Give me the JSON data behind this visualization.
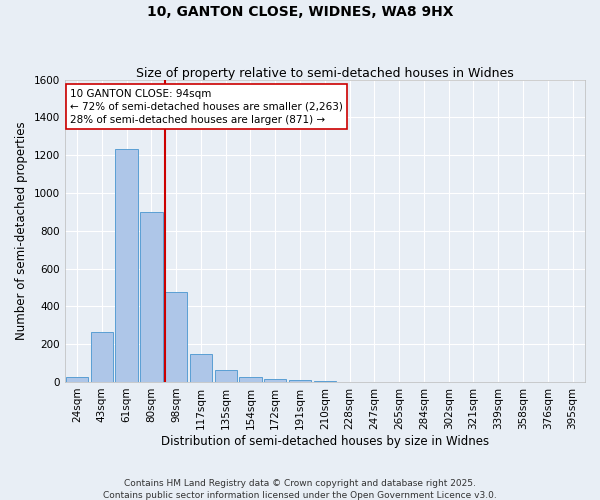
{
  "title": "10, GANTON CLOSE, WIDNES, WA8 9HX",
  "subtitle": "Size of property relative to semi-detached houses in Widnes",
  "xlabel": "Distribution of semi-detached houses by size in Widnes",
  "ylabel": "Number of semi-detached properties",
  "categories": [
    "24sqm",
    "43sqm",
    "61sqm",
    "80sqm",
    "98sqm",
    "117sqm",
    "135sqm",
    "154sqm",
    "172sqm",
    "191sqm",
    "210sqm",
    "228sqm",
    "247sqm",
    "265sqm",
    "284sqm",
    "302sqm",
    "321sqm",
    "339sqm",
    "358sqm",
    "376sqm",
    "395sqm"
  ],
  "values": [
    25,
    265,
    1230,
    900,
    475,
    150,
    65,
    28,
    18,
    8,
    3,
    0,
    0,
    0,
    0,
    0,
    0,
    0,
    0,
    0,
    0
  ],
  "bar_color": "#aec6e8",
  "bar_edge_color": "#5a9fd4",
  "bg_color": "#e8eef5",
  "grid_color": "#ffffff",
  "vline_color": "#cc0000",
  "annotation_title": "10 GANTON CLOSE: 94sqm",
  "annotation_line1": "← 72% of semi-detached houses are smaller (2,263)",
  "annotation_line2": "28% of semi-detached houses are larger (871) →",
  "annotation_box_color": "#ffffff",
  "annotation_box_edge": "#cc0000",
  "footnote1": "Contains HM Land Registry data © Crown copyright and database right 2025.",
  "footnote2": "Contains public sector information licensed under the Open Government Licence v3.0.",
  "ylim": [
    0,
    1600
  ],
  "yticks": [
    0,
    200,
    400,
    600,
    800,
    1000,
    1200,
    1400,
    1600
  ],
  "title_fontsize": 10,
  "subtitle_fontsize": 9,
  "axis_label_fontsize": 8.5,
  "tick_fontsize": 7.5,
  "annotation_fontsize": 7.5,
  "footnote_fontsize": 6.5
}
